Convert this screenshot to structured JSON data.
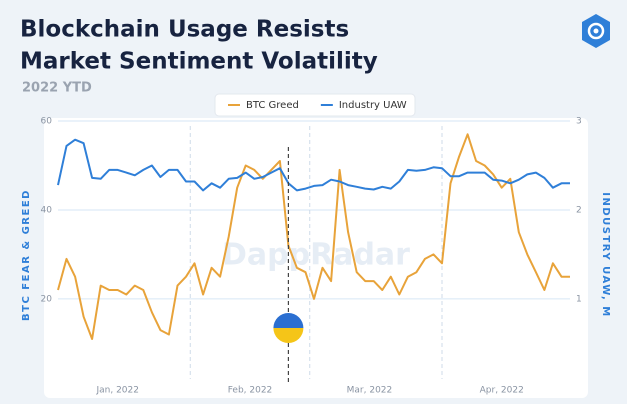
{
  "chart_data": {
    "type": "line",
    "title": [
      "Blockchain Usage Resists",
      "Market Sentiment Volatility"
    ],
    "subtitle": "2022 YTD",
    "watermark": "DappRadar",
    "y_label": "BTC FEAR & GREED",
    "y2_label": "INDUSTRY UAW, M",
    "legend": "top",
    "grid": true,
    "x": [
      1,
      3,
      5,
      7,
      9,
      11,
      13,
      15,
      17,
      19,
      21,
      23,
      25,
      27,
      29,
      31,
      33,
      35,
      37,
      39,
      41,
      43,
      45,
      47,
      49,
      51,
      53,
      55,
      57,
      59,
      61,
      63,
      65,
      67,
      69,
      71,
      73,
      75,
      77,
      79,
      81,
      83,
      85,
      87,
      89,
      91,
      93,
      95,
      97,
      99,
      101,
      103,
      105,
      107,
      109,
      111,
      113,
      115,
      117,
      119,
      121
    ],
    "xlim": [
      1,
      121
    ],
    "xticks": [
      {
        "value": 15,
        "label": "Jan, 2022"
      },
      {
        "value": 46,
        "label": "Feb, 2022"
      },
      {
        "value": 74,
        "label": "Mar, 2022"
      },
      {
        "value": 105,
        "label": "Apr, 2022"
      }
    ],
    "xgrid": [
      32,
      60,
      91
    ],
    "event_x": 55,
    "ylim": [
      2,
      60
    ],
    "yticks": [
      20,
      40,
      60
    ],
    "y2lim": [
      0.1,
      3.0
    ],
    "y2ticks": [
      1,
      2,
      3
    ],
    "series": [
      {
        "name": "BTC Greed",
        "color": "#e8a33a",
        "values": [
          22,
          29,
          25,
          16,
          11,
          23,
          22,
          22,
          21,
          23,
          22,
          17,
          13,
          12,
          23,
          25,
          28,
          21,
          27,
          25,
          34,
          45,
          50,
          49,
          47,
          49,
          51,
          32,
          27,
          26,
          20,
          27,
          24,
          49,
          35,
          26,
          24,
          24,
          22,
          25,
          21,
          25,
          26,
          29,
          30,
          28,
          46,
          52,
          57,
          51,
          50,
          48,
          45,
          47,
          35,
          30,
          26,
          22,
          28,
          25,
          25
        ]
      },
      {
        "name": "Industry UAW",
        "color": "#2f7fd8",
        "axis": "y2",
        "values": [
          2.28,
          2.72,
          2.79,
          2.75,
          2.36,
          2.35,
          2.45,
          2.45,
          2.42,
          2.39,
          2.45,
          2.5,
          2.37,
          2.45,
          2.45,
          2.32,
          2.32,
          2.22,
          2.3,
          2.25,
          2.35,
          2.36,
          2.42,
          2.35,
          2.37,
          2.42,
          2.47,
          2.3,
          2.22,
          2.24,
          2.27,
          2.28,
          2.34,
          2.32,
          2.28,
          2.26,
          2.24,
          2.23,
          2.26,
          2.24,
          2.32,
          2.45,
          2.44,
          2.45,
          2.48,
          2.47,
          2.38,
          2.38,
          2.42,
          2.42,
          2.42,
          2.34,
          2.33,
          2.3,
          2.34,
          2.4,
          2.42,
          2.36,
          2.25,
          2.3,
          2.3
        ]
      }
    ]
  }
}
